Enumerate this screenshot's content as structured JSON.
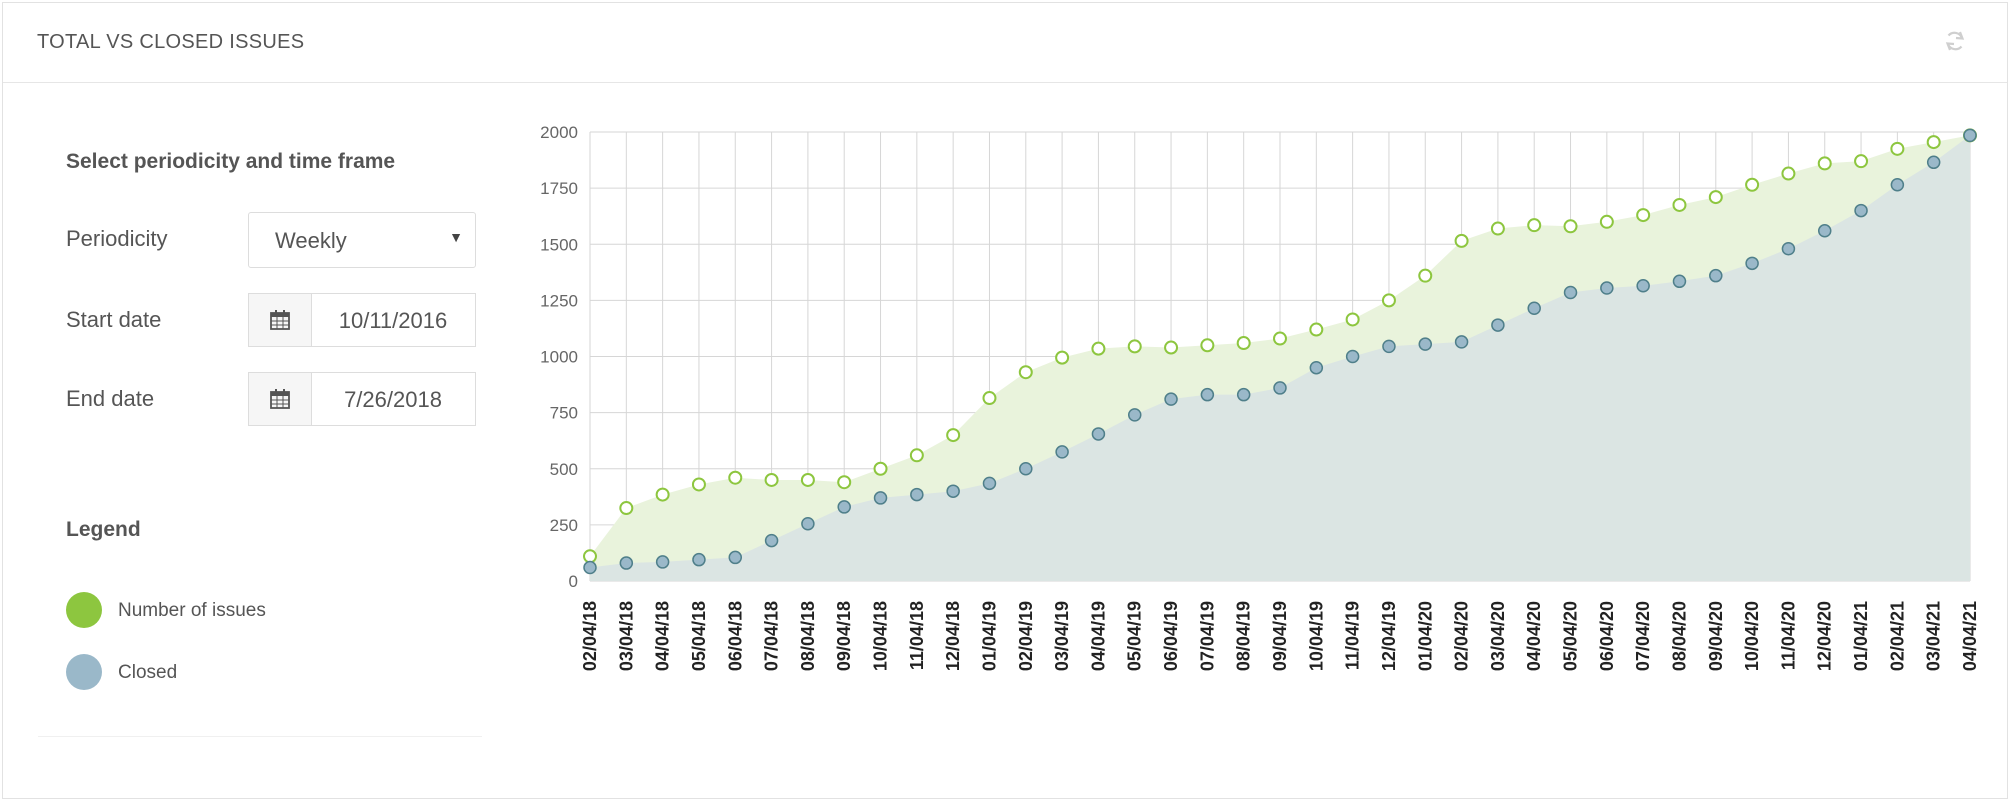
{
  "header": {
    "title": "TOTAL VS CLOSED ISSUES",
    "refresh_icon": "refresh-icon"
  },
  "panel": {
    "title": "Select periodicity and time frame",
    "periodicity": {
      "label": "Periodicity",
      "value": "Weekly"
    },
    "start": {
      "label": "Start date",
      "value": "10/11/2016",
      "icon": "calendar-icon"
    },
    "end": {
      "label": "End date",
      "value": "7/26/2018",
      "icon": "calendar-icon"
    }
  },
  "legend": {
    "title": "Legend",
    "items": [
      {
        "label": "Number of issues",
        "color": "#8dc63f"
      },
      {
        "label": "Closed",
        "color": "#9ab8c9"
      }
    ]
  },
  "chart_data": {
    "type": "area",
    "title": "TOTAL VS CLOSED ISSUES",
    "xlabel": "",
    "ylabel": "",
    "ylim": [
      0,
      2000
    ],
    "yticks": [
      0,
      250,
      500,
      750,
      1000,
      1250,
      1500,
      1750,
      2000
    ],
    "grid": true,
    "categories": [
      "02/04/18",
      "03/04/18",
      "04/04/18",
      "05/04/18",
      "06/04/18",
      "07/04/18",
      "08/04/18",
      "09/04/18",
      "10/04/18",
      "11/04/18",
      "12/04/18",
      "01/04/19",
      "02/04/19",
      "03/04/19",
      "04/04/19",
      "05/04/19",
      "06/04/19",
      "07/04/19",
      "08/04/19",
      "09/04/19",
      "10/04/19",
      "11/04/19",
      "12/04/19",
      "01/04/20",
      "02/04/20",
      "03/04/20",
      "04/04/20",
      "05/04/20",
      "06/04/20",
      "07/04/20",
      "08/04/20",
      "09/04/20",
      "10/04/20",
      "11/04/20",
      "12/04/20",
      "01/04/21",
      "02/04/21",
      "03/04/21",
      "04/04/21"
    ],
    "series": [
      {
        "name": "Number of issues",
        "color": "#8dc63f",
        "fill": "#e9f3dc",
        "values": [
          110,
          325,
          385,
          430,
          460,
          450,
          450,
          440,
          500,
          560,
          650,
          815,
          930,
          995,
          1035,
          1045,
          1040,
          1050,
          1060,
          1080,
          1120,
          1165,
          1250,
          1360,
          1515,
          1570,
          1585,
          1580,
          1600,
          1630,
          1675,
          1710,
          1765,
          1815,
          1860,
          1870,
          1925,
          1955,
          1985
        ]
      },
      {
        "name": "Closed",
        "color": "#9ab8c9",
        "fill": "#dbe5e3",
        "values": [
          60,
          80,
          85,
          95,
          105,
          180,
          255,
          330,
          370,
          385,
          400,
          435,
          500,
          575,
          655,
          740,
          810,
          830,
          830,
          860,
          950,
          1000,
          1045,
          1055,
          1065,
          1140,
          1215,
          1285,
          1305,
          1315,
          1335,
          1360,
          1415,
          1480,
          1560,
          1650,
          1765,
          1865,
          1985
        ]
      }
    ]
  }
}
